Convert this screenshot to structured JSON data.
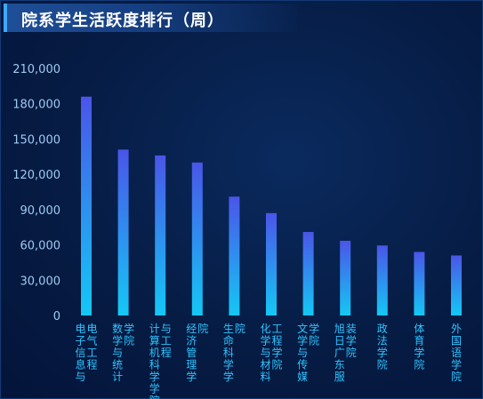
{
  "panel": {
    "title": "院系学生活跃度排行（周）"
  },
  "chart_data": {
    "type": "bar",
    "title": "院系学生活跃度排行（周）",
    "categories": [
      "电子信息与电气工程学院",
      "数学与统计学院",
      "计算机科学与工程学院",
      "经济管理学院",
      "生命科学学院",
      "化学与材料工程学院",
      "文学与传媒学院",
      "旭日广东服装学院",
      "政法学院",
      "体育学院",
      "外国语学院"
    ],
    "label_columns": [
      [
        "电子信息与",
        "电气工程"
      ],
      [
        "数学与统计",
        "学院"
      ],
      [
        "计算机科学学院",
        "与工程"
      ],
      [
        "经济管理学",
        "院"
      ],
      [
        "生命科学学",
        "院"
      ],
      [
        "化学与材料",
        "工程学院"
      ],
      [
        "文学与传媒",
        "学院"
      ],
      [
        "旭日广东服",
        "装学院"
      ],
      [
        "政法学院"
      ],
      [
        "体育学院"
      ],
      [
        "外国语学院"
      ]
    ],
    "values": [
      186000,
      141000,
      136000,
      130000,
      101000,
      87000,
      71000,
      63500,
      59500,
      54000,
      51000
    ],
    "ylim": [
      0,
      210000
    ],
    "yticks": [
      "0",
      "30,000",
      "60,000",
      "90,000",
      "120,000",
      "150,000",
      "180,000",
      "210,000"
    ],
    "ytick_values": [
      0,
      30000,
      60000,
      90000,
      120000,
      150000,
      180000,
      210000
    ],
    "grid": false,
    "colors": {
      "bar_top": "#4a55e8",
      "bar_bottom": "#14c8f5",
      "tick_text": "#9ecbf2",
      "label_text": "#2fc4ff"
    }
  }
}
